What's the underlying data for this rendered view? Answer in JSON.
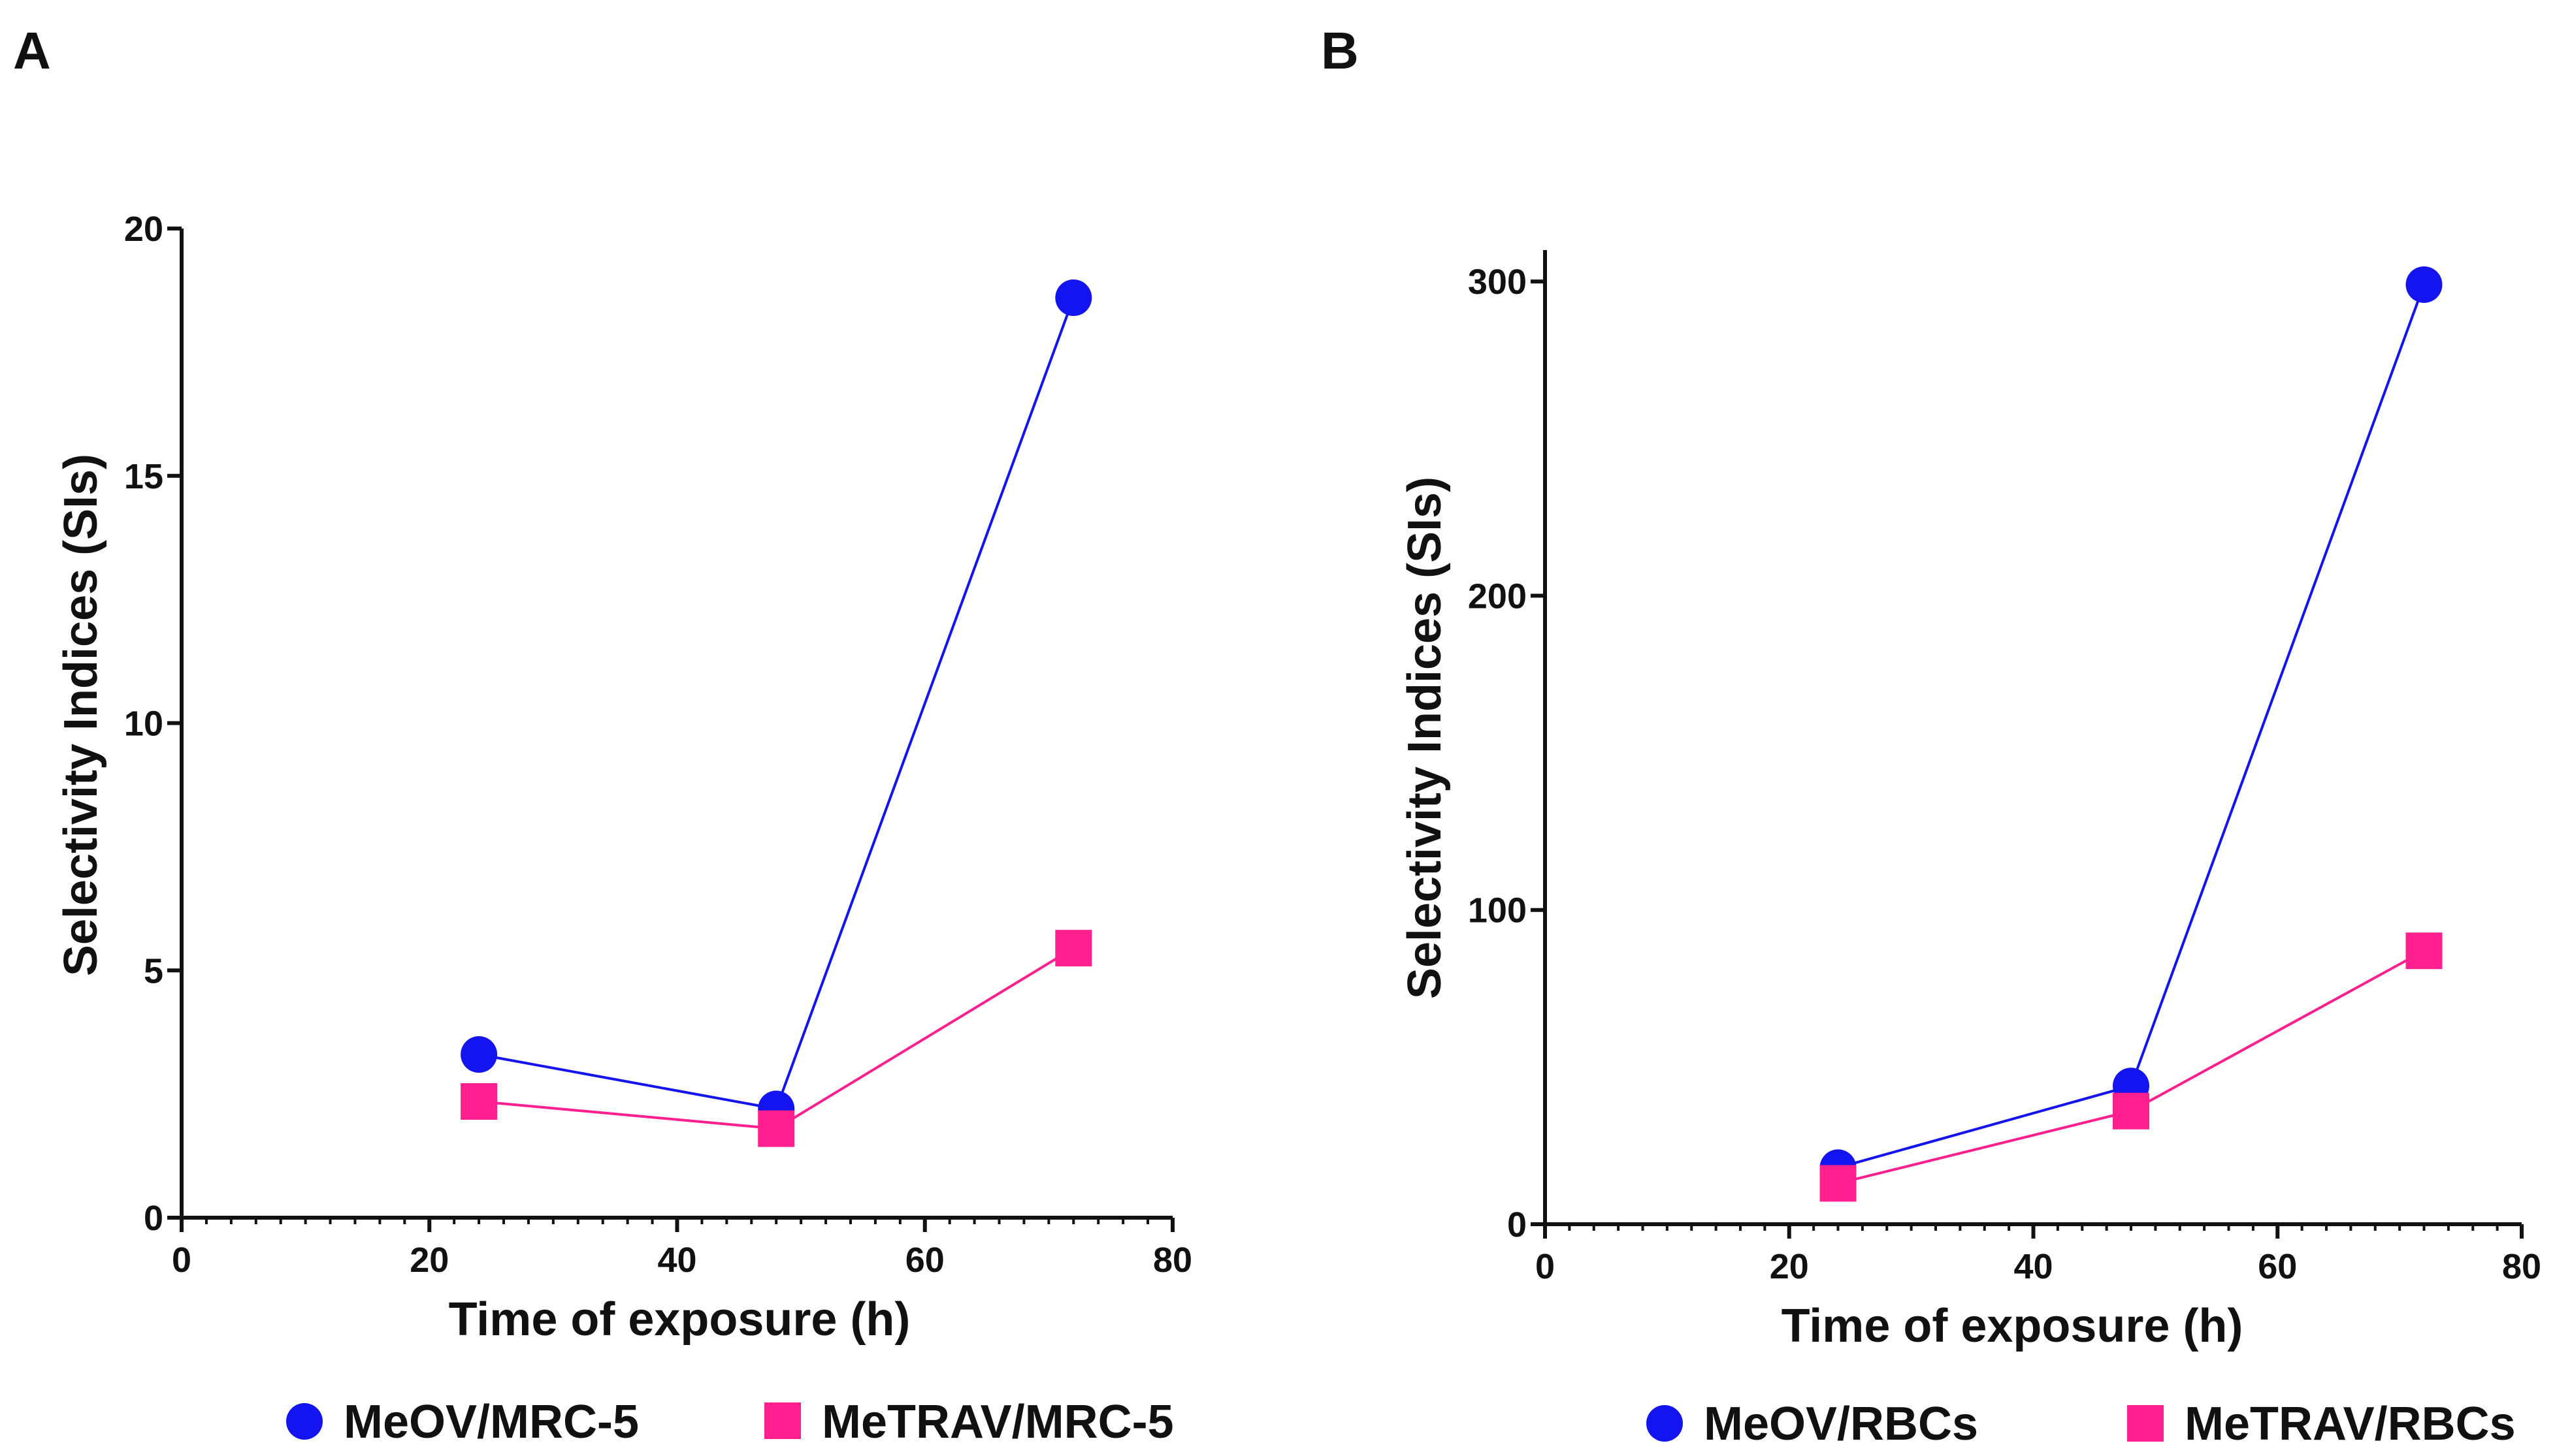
{
  "chart_data": [
    {
      "panel_label": "A",
      "type": "line",
      "xlabel": "Time of exposure (h)",
      "ylabel": "Selectivity Indices (SIs)",
      "xlim": [
        0,
        80
      ],
      "ylim": [
        0,
        20
      ],
      "x_ticks": [
        0,
        20,
        40,
        60,
        80
      ],
      "y_ticks": [
        0,
        5,
        10,
        15,
        20
      ],
      "grid": false,
      "legend_position": "bottom",
      "series": [
        {
          "name": "MeOV/MRC-5",
          "marker": "circle",
          "color": "#1414f0",
          "x": [
            24,
            48,
            72
          ],
          "values": [
            3.3,
            2.2,
            18.6
          ]
        },
        {
          "name": "MeTRAV/MRC-5",
          "marker": "square",
          "color": "#ff1f8e",
          "x": [
            24,
            48,
            72
          ],
          "values": [
            2.35,
            1.8,
            5.45
          ]
        }
      ]
    },
    {
      "panel_label": "B",
      "type": "line",
      "xlabel": "Time of exposure (h)",
      "ylabel": "Selectivity Indices (SIs)",
      "xlim": [
        0,
        80
      ],
      "ylim": [
        0,
        310
      ],
      "x_ticks": [
        0,
        20,
        40,
        60,
        80
      ],
      "y_ticks": [
        0,
        100,
        200,
        300
      ],
      "grid": false,
      "legend_position": "bottom",
      "series": [
        {
          "name": "MeOV/RBCs",
          "marker": "circle",
          "color": "#1414f0",
          "x": [
            24,
            48,
            72
          ],
          "values": [
            18,
            44,
            299
          ]
        },
        {
          "name": "MeTRAV/RBCs",
          "marker": "square",
          "color": "#ff1f8e",
          "x": [
            24,
            48,
            72
          ],
          "values": [
            13,
            36,
            87
          ]
        }
      ]
    }
  ]
}
